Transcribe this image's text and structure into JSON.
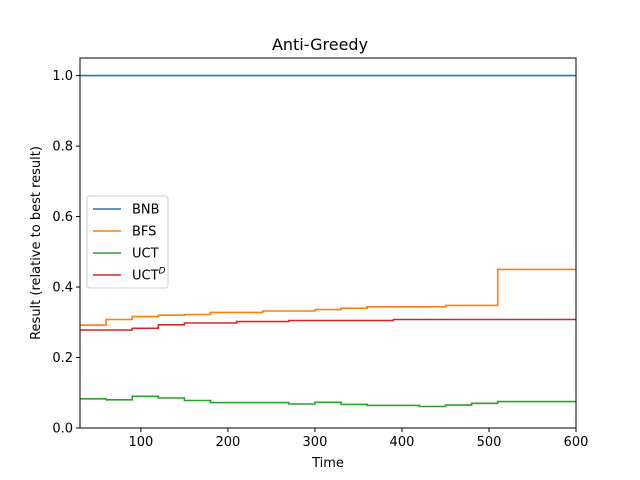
{
  "chart_data": {
    "type": "line",
    "title": "Anti-Greedy",
    "xlabel": "Time",
    "ylabel": "Result (relative to best result)",
    "xlim": [
      30,
      600
    ],
    "ylim": [
      0,
      1.05
    ],
    "xticks": [
      100,
      200,
      300,
      400,
      500,
      600
    ],
    "yticks": [
      0.0,
      0.2,
      0.4,
      0.6,
      0.8,
      1.0
    ],
    "xtick_labels": [
      "100",
      "200",
      "300",
      "400",
      "500",
      "600"
    ],
    "ytick_labels": [
      "0.0",
      "0.2",
      "0.4",
      "0.6",
      "0.8",
      "1.0"
    ],
    "legend_position": "center-left",
    "grid": false,
    "step": true,
    "series": [
      {
        "name": "BNB",
        "color": "#1f77b4",
        "points": [
          [
            30,
            1.0
          ],
          [
            600,
            1.0
          ]
        ]
      },
      {
        "name": "BFS",
        "color": "#ff7f0e",
        "points": [
          [
            30,
            0.292
          ],
          [
            60,
            0.308
          ],
          [
            90,
            0.316
          ],
          [
            120,
            0.32
          ],
          [
            150,
            0.322
          ],
          [
            180,
            0.328
          ],
          [
            240,
            0.332
          ],
          [
            300,
            0.336
          ],
          [
            330,
            0.34
          ],
          [
            360,
            0.344
          ],
          [
            450,
            0.348
          ],
          [
            510,
            0.45
          ],
          [
            600,
            0.45
          ]
        ]
      },
      {
        "name": "UCT",
        "color": "#2ca02c",
        "points": [
          [
            30,
            0.083
          ],
          [
            60,
            0.08
          ],
          [
            90,
            0.09
          ],
          [
            120,
            0.085
          ],
          [
            150,
            0.078
          ],
          [
            180,
            0.072
          ],
          [
            270,
            0.068
          ],
          [
            300,
            0.073
          ],
          [
            330,
            0.067
          ],
          [
            360,
            0.064
          ],
          [
            420,
            0.061
          ],
          [
            450,
            0.065
          ],
          [
            480,
            0.07
          ],
          [
            510,
            0.075
          ],
          [
            600,
            0.075
          ]
        ]
      },
      {
        "name": "UCT",
        "name_superscript": "D",
        "color": "#d62728",
        "points": [
          [
            30,
            0.278
          ],
          [
            90,
            0.283
          ],
          [
            120,
            0.293
          ],
          [
            150,
            0.298
          ],
          [
            210,
            0.302
          ],
          [
            270,
            0.305
          ],
          [
            390,
            0.308
          ],
          [
            600,
            0.308
          ]
        ]
      }
    ]
  }
}
